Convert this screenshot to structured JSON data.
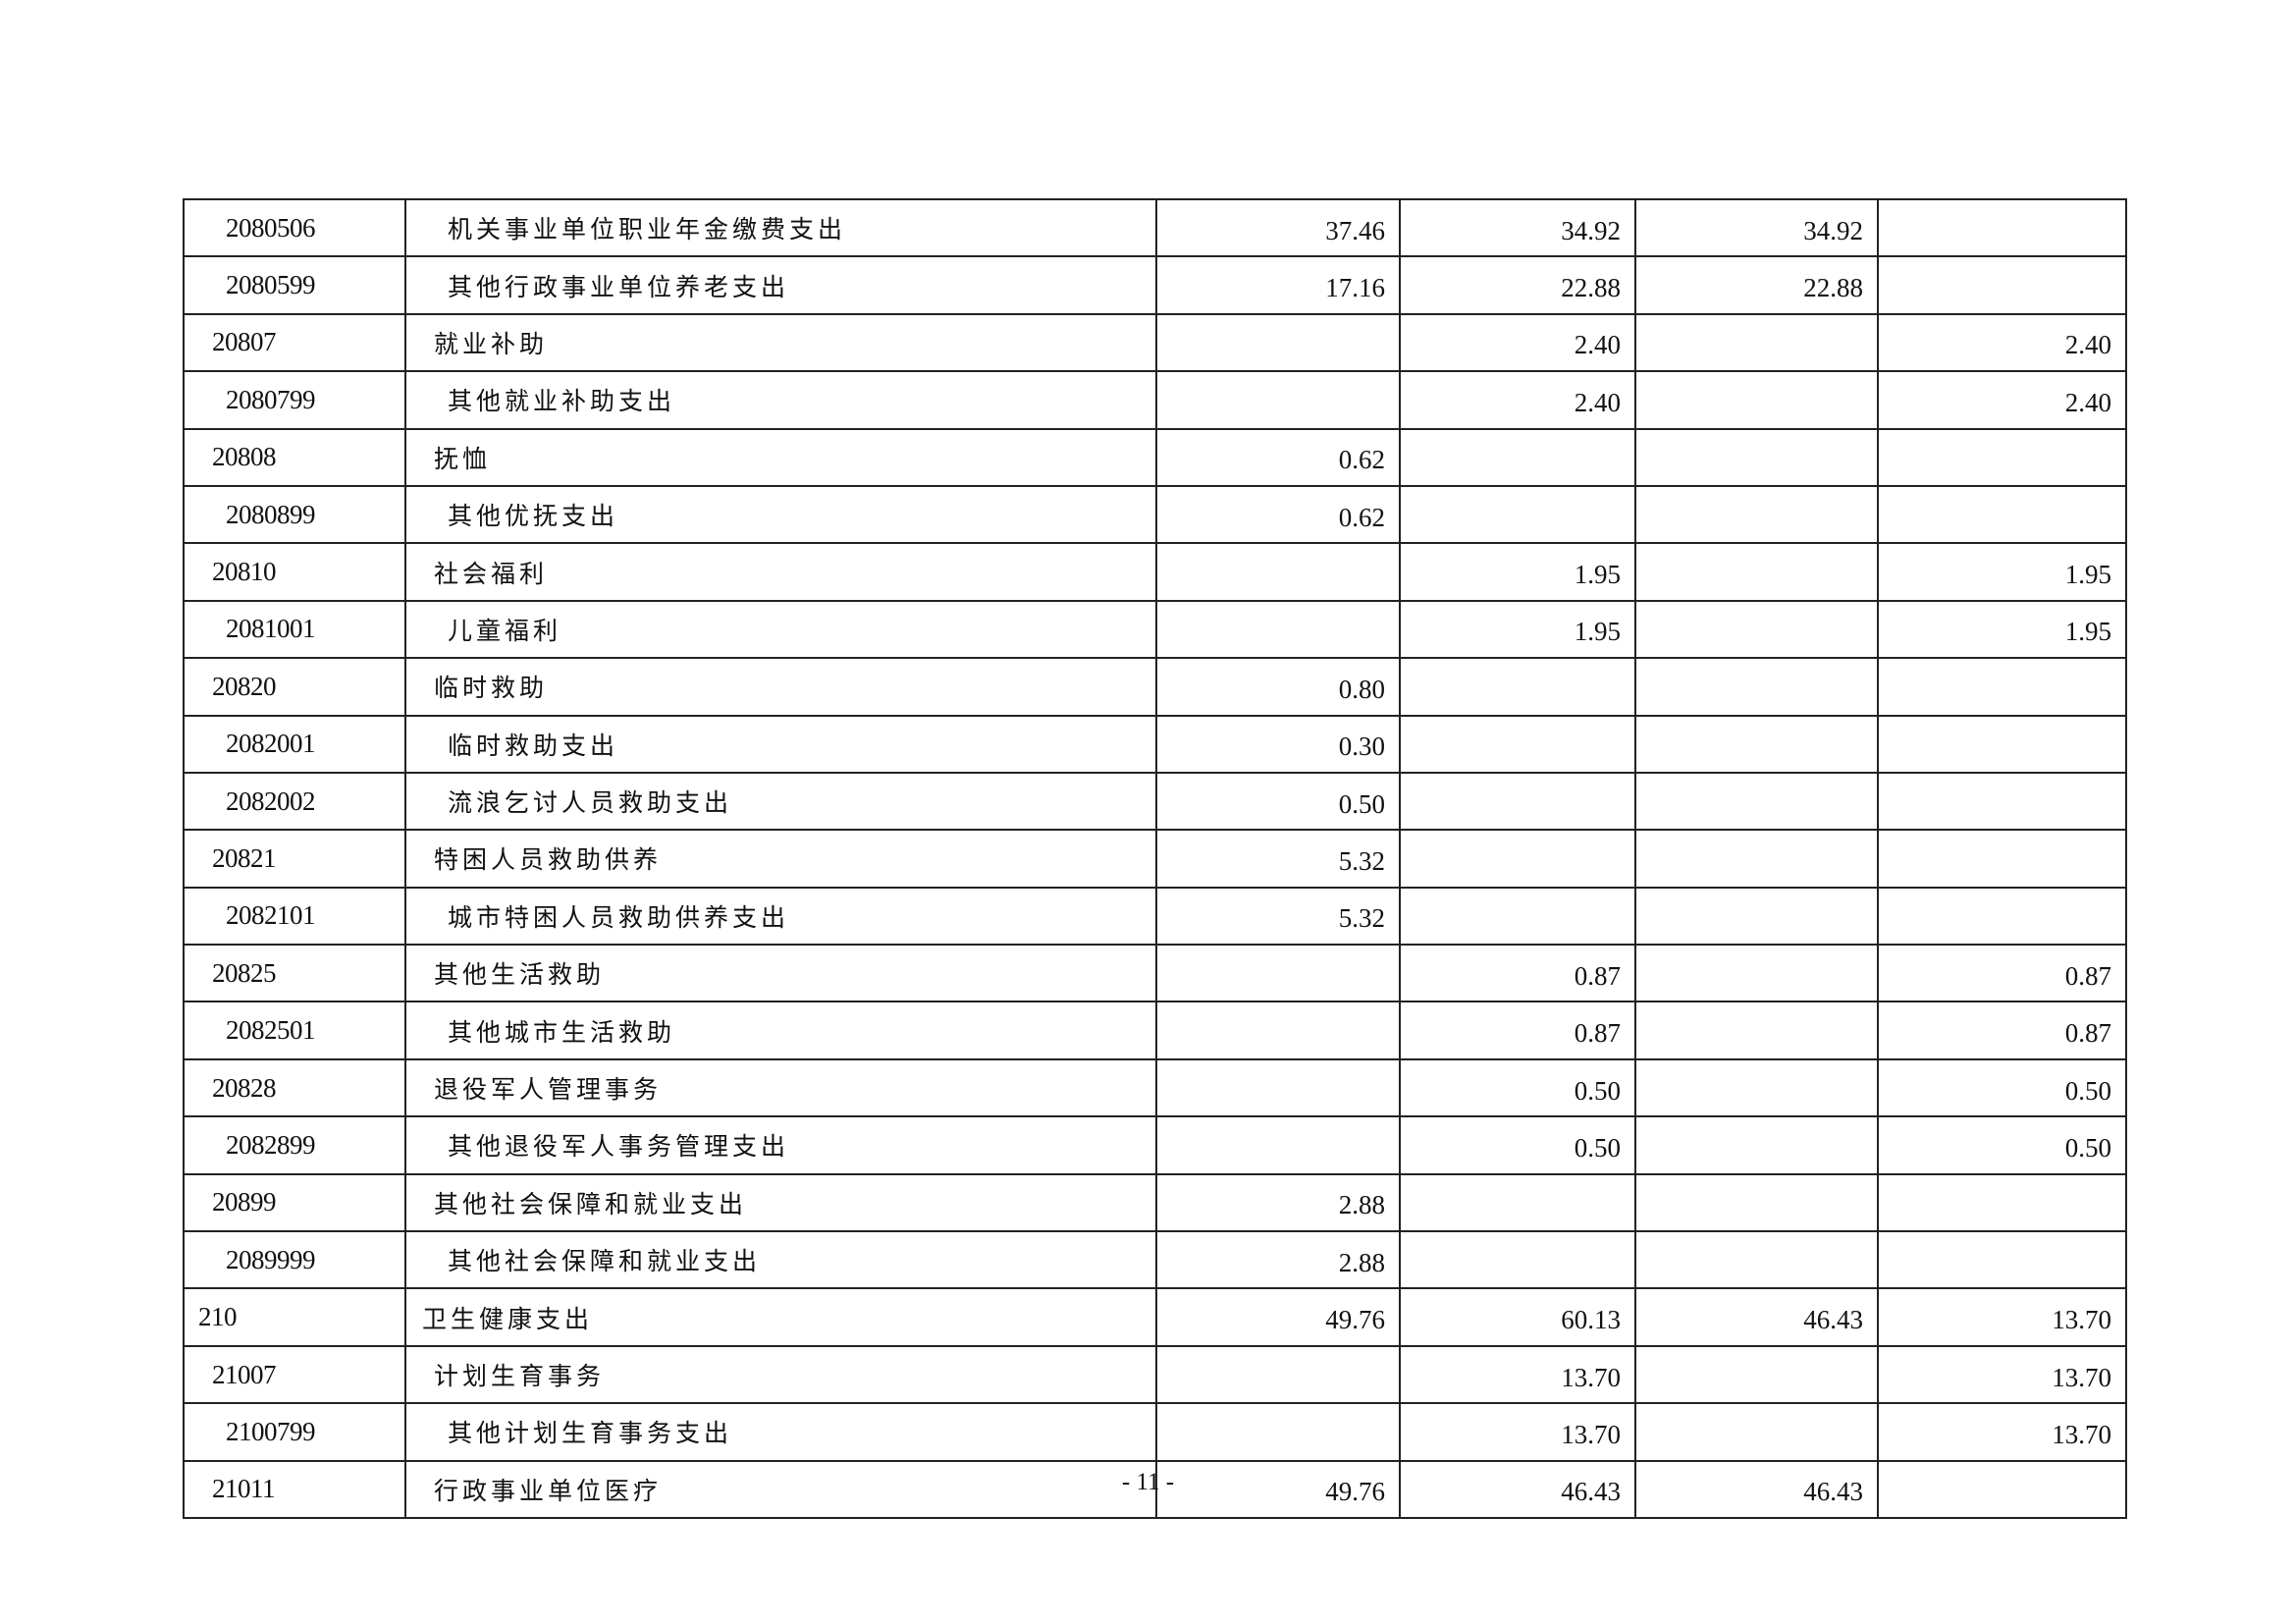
{
  "rows": [
    {
      "code": "2080506",
      "name": "机关事业单位职业年金缴费支出",
      "level": 2,
      "v": [
        "37.46",
        "34.92",
        "34.92",
        ""
      ]
    },
    {
      "code": "2080599",
      "name": "其他行政事业单位养老支出",
      "level": 2,
      "v": [
        "17.16",
        "22.88",
        "22.88",
        ""
      ]
    },
    {
      "code": "20807",
      "name": "就业补助",
      "level": 1,
      "v": [
        "",
        "2.40",
        "",
        "2.40"
      ]
    },
    {
      "code": "2080799",
      "name": "其他就业补助支出",
      "level": 2,
      "v": [
        "",
        "2.40",
        "",
        "2.40"
      ]
    },
    {
      "code": "20808",
      "name": "抚恤",
      "level": 1,
      "v": [
        "0.62",
        "",
        "",
        ""
      ]
    },
    {
      "code": "2080899",
      "name": "其他优抚支出",
      "level": 2,
      "v": [
        "0.62",
        "",
        "",
        ""
      ]
    },
    {
      "code": "20810",
      "name": "社会福利",
      "level": 1,
      "v": [
        "",
        "1.95",
        "",
        "1.95"
      ]
    },
    {
      "code": "2081001",
      "name": "儿童福利",
      "level": 2,
      "v": [
        "",
        "1.95",
        "",
        "1.95"
      ]
    },
    {
      "code": "20820",
      "name": "临时救助",
      "level": 1,
      "v": [
        "0.80",
        "",
        "",
        ""
      ]
    },
    {
      "code": "2082001",
      "name": "临时救助支出",
      "level": 2,
      "v": [
        "0.30",
        "",
        "",
        ""
      ]
    },
    {
      "code": "2082002",
      "name": "流浪乞讨人员救助支出",
      "level": 2,
      "v": [
        "0.50",
        "",
        "",
        ""
      ]
    },
    {
      "code": "20821",
      "name": "特困人员救助供养",
      "level": 1,
      "v": [
        "5.32",
        "",
        "",
        ""
      ]
    },
    {
      "code": "2082101",
      "name": "城市特困人员救助供养支出",
      "level": 2,
      "v": [
        "5.32",
        "",
        "",
        ""
      ]
    },
    {
      "code": "20825",
      "name": "其他生活救助",
      "level": 1,
      "v": [
        "",
        "0.87",
        "",
        "0.87"
      ]
    },
    {
      "code": "2082501",
      "name": "其他城市生活救助",
      "level": 2,
      "v": [
        "",
        "0.87",
        "",
        "0.87"
      ]
    },
    {
      "code": "20828",
      "name": "退役军人管理事务",
      "level": 1,
      "v": [
        "",
        "0.50",
        "",
        "0.50"
      ]
    },
    {
      "code": "2082899",
      "name": "其他退役军人事务管理支出",
      "level": 2,
      "v": [
        "",
        "0.50",
        "",
        "0.50"
      ]
    },
    {
      "code": "20899",
      "name": "其他社会保障和就业支出",
      "level": 1,
      "v": [
        "2.88",
        "",
        "",
        ""
      ]
    },
    {
      "code": "2089999",
      "name": "其他社会保障和就业支出",
      "level": 2,
      "v": [
        "2.88",
        "",
        "",
        ""
      ]
    },
    {
      "code": "210",
      "name": "卫生健康支出",
      "level": 0,
      "v": [
        "49.76",
        "60.13",
        "46.43",
        "13.70"
      ]
    },
    {
      "code": "21007",
      "name": "计划生育事务",
      "level": 1,
      "v": [
        "",
        "13.70",
        "",
        "13.70"
      ]
    },
    {
      "code": "2100799",
      "name": "其他计划生育事务支出",
      "level": 2,
      "v": [
        "",
        "13.70",
        "",
        "13.70"
      ]
    },
    {
      "code": "21011",
      "name": "行政事业单位医疗",
      "level": 1,
      "v": [
        "49.76",
        "46.43",
        "46.43",
        ""
      ]
    }
  ],
  "page_number": "- 11 -"
}
